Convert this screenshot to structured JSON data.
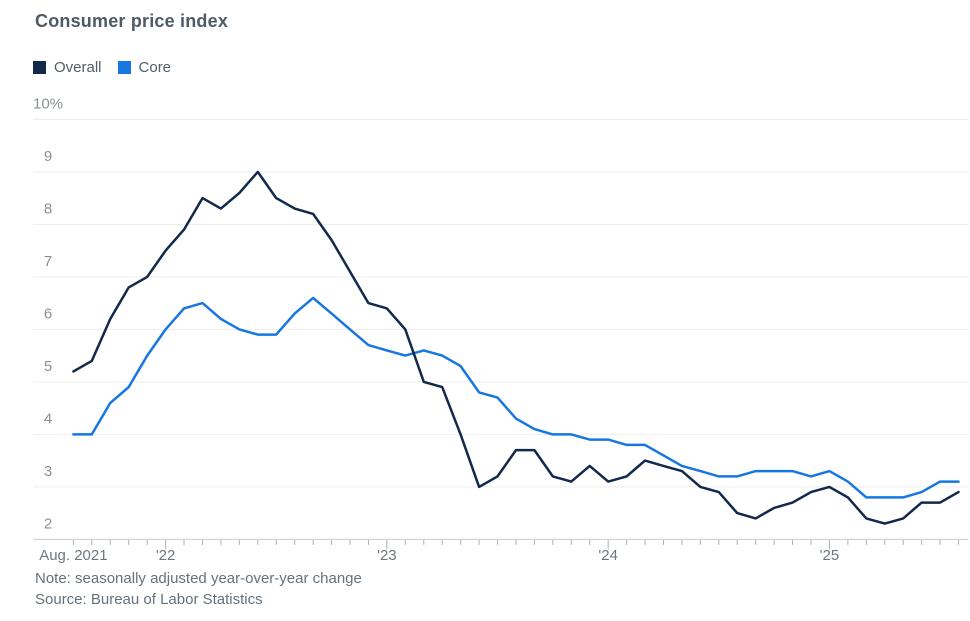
{
  "header": {
    "title": "Consumer price index"
  },
  "legend": {
    "items": [
      {
        "label": "Overall",
        "color": "#12294b"
      },
      {
        "label": "Core",
        "color": "#1777e2"
      }
    ]
  },
  "footer": {
    "note": "Note: seasonally adjusted year-over-year change",
    "source": "Source: Bureau of Labor Statistics"
  },
  "colors": {
    "overall_line": "#12294b",
    "core_line": "#1777e2",
    "gridline": "#ededee",
    "axis_line": "#c7ccd0",
    "tick": "#aab0b5",
    "y_label": "#8a9096",
    "x_label": "#6d7780",
    "title_text": "#4e5a65",
    "note_text": "#67717b",
    "background": "#ffffff"
  },
  "chart_data": {
    "type": "line",
    "title": "Consumer price index",
    "x": [
      "Aug 2021",
      "Sep 2021",
      "Oct 2021",
      "Nov 2021",
      "Dec 2021",
      "Jan 2022",
      "Feb 2022",
      "Mar 2022",
      "Apr 2022",
      "May 2022",
      "Jun 2022",
      "Jul 2022",
      "Aug 2022",
      "Sep 2022",
      "Oct 2022",
      "Nov 2022",
      "Dec 2022",
      "Jan 2023",
      "Feb 2023",
      "Mar 2023",
      "Apr 2023",
      "May 2023",
      "Jun 2023",
      "Jul 2023",
      "Aug 2023",
      "Sep 2023",
      "Oct 2023",
      "Nov 2023",
      "Dec 2023",
      "Jan 2024",
      "Feb 2024",
      "Mar 2024",
      "Apr 2024",
      "May 2024",
      "Jun 2024",
      "Jul 2024",
      "Aug 2024",
      "Sep 2024",
      "Oct 2024",
      "Nov 2024",
      "Dec 2024",
      "Jan 2025",
      "Feb 2025",
      "Mar 2025",
      "Apr 2025",
      "May 2025",
      "Jun 2025",
      "Jul 2025",
      "Aug 2025"
    ],
    "series": [
      {
        "name": "Overall",
        "color": "#12294b",
        "values": [
          5.2,
          5.4,
          6.2,
          6.8,
          7.0,
          7.5,
          7.9,
          8.5,
          8.3,
          8.6,
          9.0,
          8.5,
          8.3,
          8.2,
          7.7,
          7.1,
          6.5,
          6.4,
          6.0,
          5.0,
          4.9,
          4.0,
          3.0,
          3.2,
          3.7,
          3.7,
          3.2,
          3.1,
          3.4,
          3.1,
          3.2,
          3.5,
          3.4,
          3.3,
          3.0,
          2.9,
          2.5,
          2.4,
          2.6,
          2.7,
          2.9,
          3.0,
          2.8,
          2.4,
          2.3,
          2.4,
          2.7,
          2.7,
          2.9
        ]
      },
      {
        "name": "Core",
        "color": "#1777e2",
        "values": [
          4.0,
          4.0,
          4.6,
          4.9,
          5.5,
          6.0,
          6.4,
          6.5,
          6.2,
          6.0,
          5.9,
          5.9,
          6.3,
          6.6,
          6.3,
          6.0,
          5.7,
          5.6,
          5.5,
          5.6,
          5.5,
          5.3,
          4.8,
          4.7,
          4.3,
          4.1,
          4.0,
          4.0,
          3.9,
          3.9,
          3.8,
          3.8,
          3.6,
          3.4,
          3.3,
          3.2,
          3.2,
          3.3,
          3.3,
          3.3,
          3.2,
          3.3,
          3.1,
          2.8,
          2.8,
          2.8,
          2.9,
          3.1,
          3.1
        ]
      }
    ],
    "ylim": [
      2,
      10
    ],
    "yticks": [
      {
        "value": 10,
        "label": "10%"
      },
      {
        "value": 9,
        "label": "9"
      },
      {
        "value": 8,
        "label": "8"
      },
      {
        "value": 7,
        "label": "7"
      },
      {
        "value": 6,
        "label": "6"
      },
      {
        "value": 5,
        "label": "5"
      },
      {
        "value": 4,
        "label": "4"
      },
      {
        "value": 3,
        "label": "3"
      },
      {
        "value": 2,
        "label": "2"
      }
    ],
    "xticks": [
      {
        "index": 0,
        "label": "Aug. 2021"
      },
      {
        "index": 5,
        "label": "'22"
      },
      {
        "index": 17,
        "label": "'23"
      },
      {
        "index": 29,
        "label": "'24"
      },
      {
        "index": 41,
        "label": "'25"
      }
    ],
    "major_tick_indices": [
      5,
      17,
      29,
      41
    ],
    "grid": "horizontal",
    "legend_position": "top-left"
  }
}
